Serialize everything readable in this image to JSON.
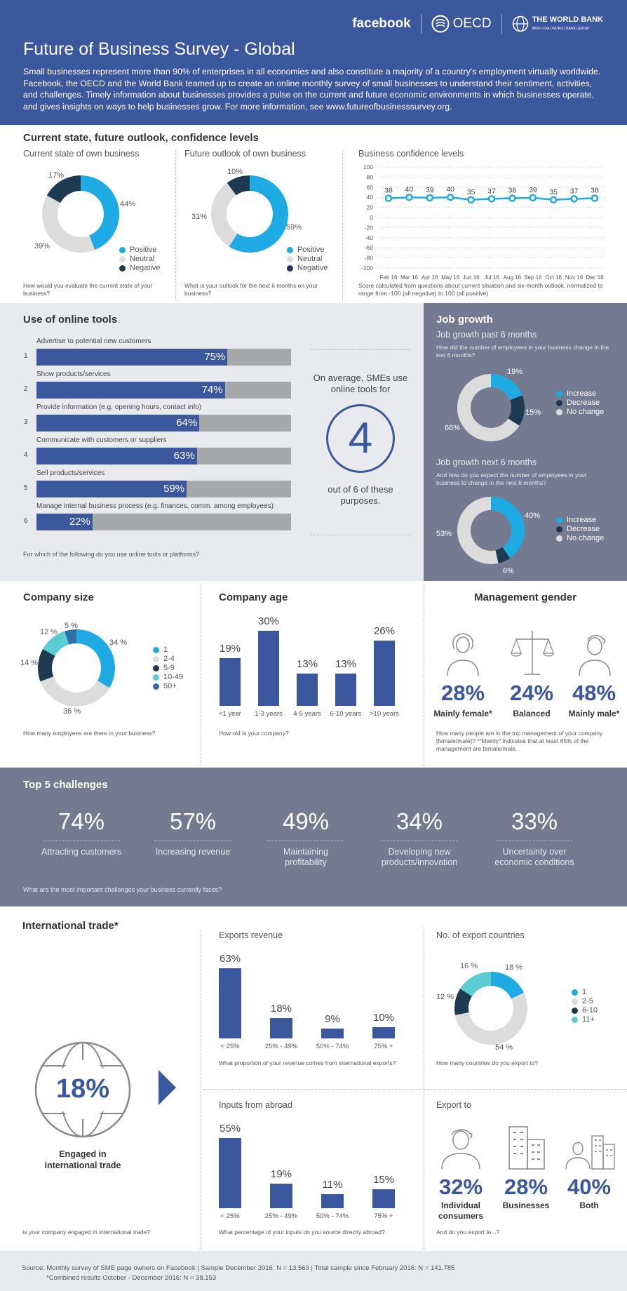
{
  "header": {
    "title": "Future of Business Survey - Global",
    "intro": "Small businesses represent more than 90% of enterprises in all economies and also constitute a majority of a country's employment virtually worldwide. Facebook, the OECD and the World Bank teamed up to create an online monthly survey of small businesses to understand their sentiment, activities, and challenges. Timely information about businesses provides a pulse on the current and future economic environments in which businesses operate, and gives insights on ways to help businesses grow. For more information, see www.futureofbusinesssurvey.org.",
    "logo_facebook": "facebook",
    "logo_oecd": "OECD",
    "logo_wb": "THE WORLD BANK",
    "logo_wb_sub": "IBRD • IDA | WORLD BANK GROUP"
  },
  "colors": {
    "brand": "#3b579d",
    "positive": "#1eabe3",
    "neutral": "#dcdcdc",
    "negative": "#1e3a52",
    "teal": "#5bcdd2",
    "steel": "#2f6fa3"
  },
  "state": {
    "section_title": "Current state, future outlook, confidence levels",
    "current": {
      "title": "Current state of own business",
      "question": "How would you evaluate the current state of your business?",
      "labels": [
        "44%",
        "39%",
        "17%"
      ],
      "legend": [
        "Positive",
        "Neutral",
        "Negative"
      ],
      "chart_data": {
        "type": "pie",
        "categories": [
          "Positive",
          "Neutral",
          "Negative"
        ],
        "values": [
          44,
          39,
          17
        ]
      }
    },
    "future": {
      "title": "Future outlook of own business",
      "question": "What is your outlook for the next 6 months on your business?",
      "labels": [
        "59%",
        "31%",
        "10%"
      ],
      "legend": [
        "Positive",
        "Neutral",
        "Negative"
      ],
      "chart_data": {
        "type": "pie",
        "categories": [
          "Positive",
          "Neutral",
          "Negative"
        ],
        "values": [
          59,
          31,
          10
        ]
      }
    },
    "confidence": {
      "title": "Business confidence levels",
      "note": "Score calculated from questions about current situation and six-month outlook, normalized to range from -100 (all negative) to 100 (all positive)",
      "chart_data": {
        "type": "line",
        "x": [
          "Feb 16",
          "Mar 16",
          "Apr 16",
          "May 16",
          "Jun 16",
          "Jul 16",
          "Aug 16",
          "Sep 16",
          "Oct 16",
          "Nov 16",
          "Dec 16"
        ],
        "values": [
          38,
          40,
          39,
          40,
          35,
          37,
          38,
          39,
          35,
          37,
          38
        ],
        "ylim": [
          -100,
          100
        ],
        "yticks": [
          "100",
          "80",
          "60",
          "40",
          "20",
          "0",
          "-20",
          "-40",
          "-60",
          "-80",
          "-100"
        ],
        "grid": true
      }
    }
  },
  "tools": {
    "title": "Use of online tools",
    "question": "For which of the following do you use online tools or platforms?",
    "items": [
      {
        "num": "1",
        "label": "Advertise to potential new customers",
        "value": 75,
        "pct": "75%"
      },
      {
        "num": "2",
        "label": "Show products/services",
        "value": 74,
        "pct": "74%"
      },
      {
        "num": "3",
        "label": "Provide information (e.g. opening hours, contact info)",
        "value": 64,
        "pct": "64%"
      },
      {
        "num": "4",
        "label": "Communicate with customers or suppliers",
        "value": 63,
        "pct": "63%"
      },
      {
        "num": "5",
        "label": "Sell products/services",
        "value": 59,
        "pct": "59%"
      },
      {
        "num": "6",
        "label": "Manage internal business process (e.g. finances, comm. among employees)",
        "value": 22,
        "pct": "22%"
      }
    ],
    "avg_top": "On average, SMEs use online tools for",
    "avg_num": "4",
    "avg_bottom": "out of 6 of these purposes."
  },
  "jobs": {
    "title": "Job growth",
    "past": {
      "title": "Job growth past 6 months",
      "question": "How did the number of employees in your business change in the last 6 months?",
      "labels": [
        "19%",
        "15%",
        "66%"
      ],
      "legend": [
        "Increase",
        "Decrease",
        "No change"
      ],
      "chart_data": {
        "type": "pie",
        "categories": [
          "Increase",
          "Decrease",
          "No change"
        ],
        "values": [
          19,
          15,
          66
        ]
      }
    },
    "next": {
      "title": "Job growth next 6 months",
      "question": "And how do you expect the number of employees in your business to change in the next 6 months?",
      "labels": [
        "40%",
        "6%",
        "53%"
      ],
      "legend": [
        "Increase",
        "Decrease",
        "No change"
      ],
      "chart_data": {
        "type": "pie",
        "categories": [
          "Increase",
          "Decrease",
          "No change"
        ],
        "values": [
          40,
          6,
          53
        ]
      }
    }
  },
  "size": {
    "title": "Company size",
    "question": "How many employees are there in your business?",
    "labels": [
      "34 %",
      "36 %",
      "14 %",
      "12 %",
      "5 %"
    ],
    "legend": [
      "1",
      "2-4",
      "5-9",
      "10-49",
      "50+"
    ],
    "chart_data": {
      "type": "pie",
      "categories": [
        "1",
        "2-4",
        "5-9",
        "10-49",
        "50+"
      ],
      "values": [
        34,
        36,
        14,
        12,
        5
      ]
    }
  },
  "age": {
    "title": "Company age",
    "question": "How old is your company?",
    "chart_data": {
      "type": "bar",
      "categories": [
        "<1 year",
        "1-3 years",
        "4-5 years",
        "6-10 years",
        ">10 years"
      ],
      "values": [
        19,
        30,
        13,
        13,
        26
      ],
      "labels": [
        "19%",
        "30%",
        "13%",
        "13%",
        "26%"
      ]
    }
  },
  "gender": {
    "title": "Management gender",
    "items": [
      {
        "value": "28%",
        "label": "Mainly female*"
      },
      {
        "value": "24%",
        "label": "Balanced"
      },
      {
        "value": "48%",
        "label": "Mainly male*"
      }
    ],
    "note": "How many people are in the top management of your company [female/male]? *\"Mainly\" indicates that at least 65% of the management are female/male."
  },
  "challenges": {
    "title": "Top 5 challenges",
    "question": "What are the most important challenges your business currently faces?",
    "items": [
      {
        "value": "74%",
        "label": "Attracting customers"
      },
      {
        "value": "57%",
        "label": "Increasing revenue"
      },
      {
        "value": "49%",
        "label": "Maintaining profitability"
      },
      {
        "value": "34%",
        "label": "Developing new products/innovation"
      },
      {
        "value": "33%",
        "label": "Uncertainty over economic conditions"
      }
    ]
  },
  "trade": {
    "title": "International trade*",
    "engaged_value": "18%",
    "engaged_label": "Engaged in international trade",
    "question": "Is your company engaged in international trade?",
    "exports": {
      "title": "Exports revenue",
      "question": "What proportion of your revenue comes from international exports?",
      "chart_data": {
        "type": "bar",
        "categories": [
          "< 25%",
          "25% - 49%",
          "50% - 74%",
          "75% +"
        ],
        "values": [
          63,
          18,
          9,
          10
        ],
        "labels": [
          "63%",
          "18%",
          "9%",
          "10%"
        ]
      }
    },
    "inputs": {
      "title": "Inputs from abroad",
      "question": "What percentage of your inputs do you source directly abroad?",
      "chart_data": {
        "type": "bar",
        "categories": [
          "< 25%",
          "25% - 49%",
          "50% - 74%",
          "75% +"
        ],
        "values": [
          55,
          19,
          11,
          15
        ],
        "labels": [
          "55%",
          "19%",
          "11%",
          "15%"
        ]
      }
    },
    "countries": {
      "title": "No. of export countries",
      "question": "How many countries do you export to?",
      "labels": [
        "18 %",
        "54 %",
        "12 %",
        "16 %"
      ],
      "legend": [
        "1",
        "2-5",
        "6-10",
        "11+"
      ],
      "chart_data": {
        "type": "pie",
        "categories": [
          "1",
          "2-5",
          "6-10",
          "11+"
        ],
        "values": [
          18,
          54,
          12,
          16
        ]
      }
    },
    "export_to": {
      "title": "Export to",
      "question": "And do you export to...?",
      "items": [
        {
          "value": "32%",
          "label": "Individual consumers"
        },
        {
          "value": "28%",
          "label": "Businesses"
        },
        {
          "value": "40%",
          "label": "Both"
        }
      ]
    }
  },
  "footer": {
    "line1": "Source:  Monthly survey of SME page owners on Facebook | Sample December 2016: N = 13.563 | Total sample since February 2016: N = 141.785",
    "line2": "*Combined results October - December 2016: N = 38.153"
  }
}
